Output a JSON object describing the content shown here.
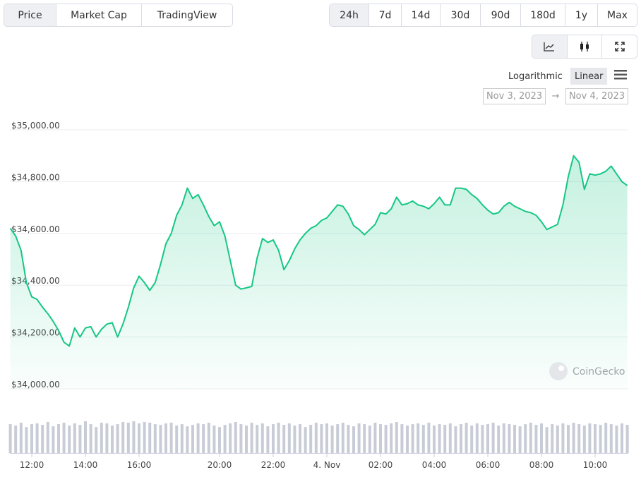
{
  "header": {
    "tabs": [
      "Price",
      "Market Cap",
      "TradingView"
    ],
    "ranges": [
      "24h",
      "7d",
      "14d",
      "30d",
      "90d",
      "180d",
      "1y",
      "Max"
    ],
    "scales": [
      "Logarithmic",
      "Linear"
    ],
    "date_from": "Nov 3, 2023",
    "arrow": "→",
    "date_to": "Nov 4, 2023"
  },
  "watermark": "CoinGecko",
  "chart_data": {
    "type": "line",
    "color": "#16c784",
    "volume_color": "#c8ccd6",
    "categories": [
      null,
      null,
      null,
      null,
      "12:00",
      null,
      null,
      null,
      null,
      null,
      null,
      null,
      null,
      null,
      "14:00",
      null,
      null,
      null,
      null,
      null,
      null,
      null,
      null,
      null,
      "16:00",
      null,
      null,
      null,
      null,
      null,
      null,
      null,
      null,
      null,
      null,
      null,
      null,
      null,
      null,
      "20:00",
      null,
      null,
      null,
      null,
      null,
      null,
      null,
      null,
      null,
      "22:00",
      null,
      null,
      null,
      null,
      null,
      null,
      null,
      null,
      null,
      "4. Nov",
      null,
      null,
      null,
      null,
      null,
      null,
      null,
      null,
      null,
      "02:00",
      null,
      null,
      null,
      null,
      null,
      null,
      null,
      null,
      null,
      "04:00",
      null,
      null,
      null,
      null,
      null,
      null,
      null,
      null,
      null,
      "06:00",
      null,
      null,
      null,
      null,
      null,
      null,
      null,
      null,
      null,
      "08:00",
      null,
      null,
      null,
      null,
      null,
      null,
      null,
      null,
      null,
      "10:00",
      null,
      null,
      null,
      null,
      null,
      null
    ],
    "values": [
      34620,
      34590,
      34535,
      34410,
      34355,
      34345,
      34315,
      34290,
      34260,
      34225,
      34180,
      34165,
      34235,
      34200,
      34235,
      34240,
      34200,
      34230,
      34250,
      34255,
      34200,
      34250,
      34315,
      34390,
      34435,
      34410,
      34380,
      34410,
      34480,
      34560,
      34600,
      34670,
      34710,
      34775,
      34735,
      34750,
      34710,
      34665,
      34630,
      34645,
      34590,
      34495,
      34400,
      34385,
      34390,
      34395,
      34505,
      34580,
      34565,
      34575,
      34535,
      34460,
      34495,
      34540,
      34575,
      34600,
      34620,
      34630,
      34650,
      34660,
      34685,
      34710,
      34705,
      34675,
      34630,
      34615,
      34595,
      34615,
      34635,
      34680,
      34675,
      34695,
      34740,
      34710,
      34715,
      34725,
      34710,
      34705,
      34695,
      34715,
      34740,
      34710,
      34710,
      34775,
      34775,
      34770,
      34750,
      34735,
      34710,
      34690,
      34675,
      34680,
      34705,
      34720,
      34705,
      34695,
      34685,
      34680,
      34670,
      34645,
      34615,
      34625,
      34635,
      34710,
      34820,
      34900,
      34875,
      34770,
      34830,
      34825,
      34830,
      34840,
      34860,
      34830,
      34800,
      34785
    ],
    "volume": [
      40,
      38,
      42,
      36,
      40,
      41,
      39,
      43,
      37,
      40,
      42,
      38,
      41,
      39,
      44,
      40,
      36,
      42,
      41,
      38,
      40,
      43,
      42,
      44,
      41,
      43,
      42,
      40,
      39,
      41,
      42,
      38,
      40,
      37,
      39,
      41,
      40,
      42,
      38,
      36,
      39,
      41,
      43,
      40,
      38,
      42,
      39,
      41,
      37,
      40,
      42,
      39,
      41,
      38,
      40,
      36,
      39,
      42,
      40,
      41,
      38,
      40,
      42,
      39,
      37,
      41,
      40,
      38,
      42,
      40,
      39,
      41,
      43,
      40,
      38,
      40,
      41,
      39,
      42,
      38,
      40,
      39,
      41,
      37,
      40,
      42,
      38,
      41,
      39,
      40,
      42,
      38,
      41,
      40,
      39,
      37,
      40,
      42,
      39,
      41,
      36,
      40,
      38,
      41,
      39,
      42,
      40,
      38,
      41,
      40,
      39,
      42,
      40,
      38,
      41,
      39
    ],
    "ylim": [
      34000,
      35000
    ],
    "yticks": [
      {
        "value": 34000,
        "label": "$34,000.00"
      },
      {
        "value": 34200,
        "label": "$34,200.00"
      },
      {
        "value": 34400,
        "label": "$34,400.00"
      },
      {
        "value": 34600,
        "label": "$34,600.00"
      },
      {
        "value": 34800,
        "label": "$34,800.00"
      },
      {
        "value": 35000,
        "label": "$35,000.00"
      }
    ],
    "grid": true
  }
}
